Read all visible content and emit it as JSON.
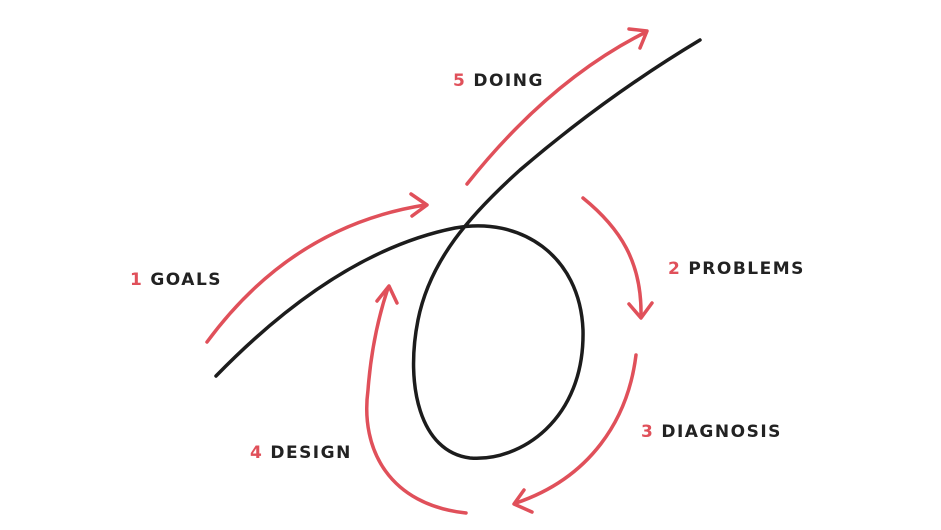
{
  "colors": {
    "accent": "#e0505a",
    "line": "#1c1c1c",
    "text": "#222222",
    "background": "#ffffff"
  },
  "steps": [
    {
      "number": "1",
      "label": "GOALS"
    },
    {
      "number": "2",
      "label": "PROBLEMS"
    },
    {
      "number": "3",
      "label": "DIAGNOSIS"
    },
    {
      "number": "4",
      "label": "DESIGN"
    },
    {
      "number": "5",
      "label": "DOING"
    }
  ]
}
